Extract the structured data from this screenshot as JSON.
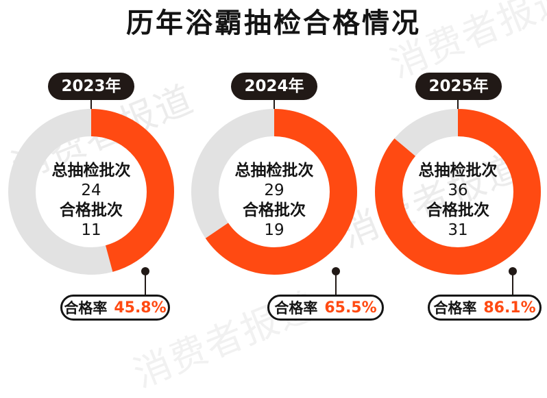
{
  "title": "历年浴霸抽检合格情况",
  "watermark": "消费者报道",
  "colors": {
    "accent": "#ff4a12",
    "track": "#e2e2e2",
    "dark": "#211916"
  },
  "labels": {
    "total": "总抽检批次",
    "qualified": "合格批次",
    "rate": "合格率"
  },
  "years": [
    {
      "year": "2023年",
      "total": "24",
      "qualified": "11",
      "rate": "45.8%"
    },
    {
      "year": "2024年",
      "total": "29",
      "qualified": "19",
      "rate": "65.5%"
    },
    {
      "year": "2025年",
      "total": "36",
      "qualified": "31",
      "rate": "86.1%"
    }
  ],
  "chart_data": {
    "type": "pie",
    "title": "历年浴霸抽检合格情况",
    "categories": [
      "2023年",
      "2024年",
      "2025年"
    ],
    "series": [
      {
        "name": "总抽检批次",
        "values": [
          24,
          29,
          36
        ]
      },
      {
        "name": "合格批次",
        "values": [
          11,
          19,
          31
        ]
      },
      {
        "name": "合格率",
        "values": [
          45.8,
          65.5,
          86.1
        ]
      }
    ]
  }
}
